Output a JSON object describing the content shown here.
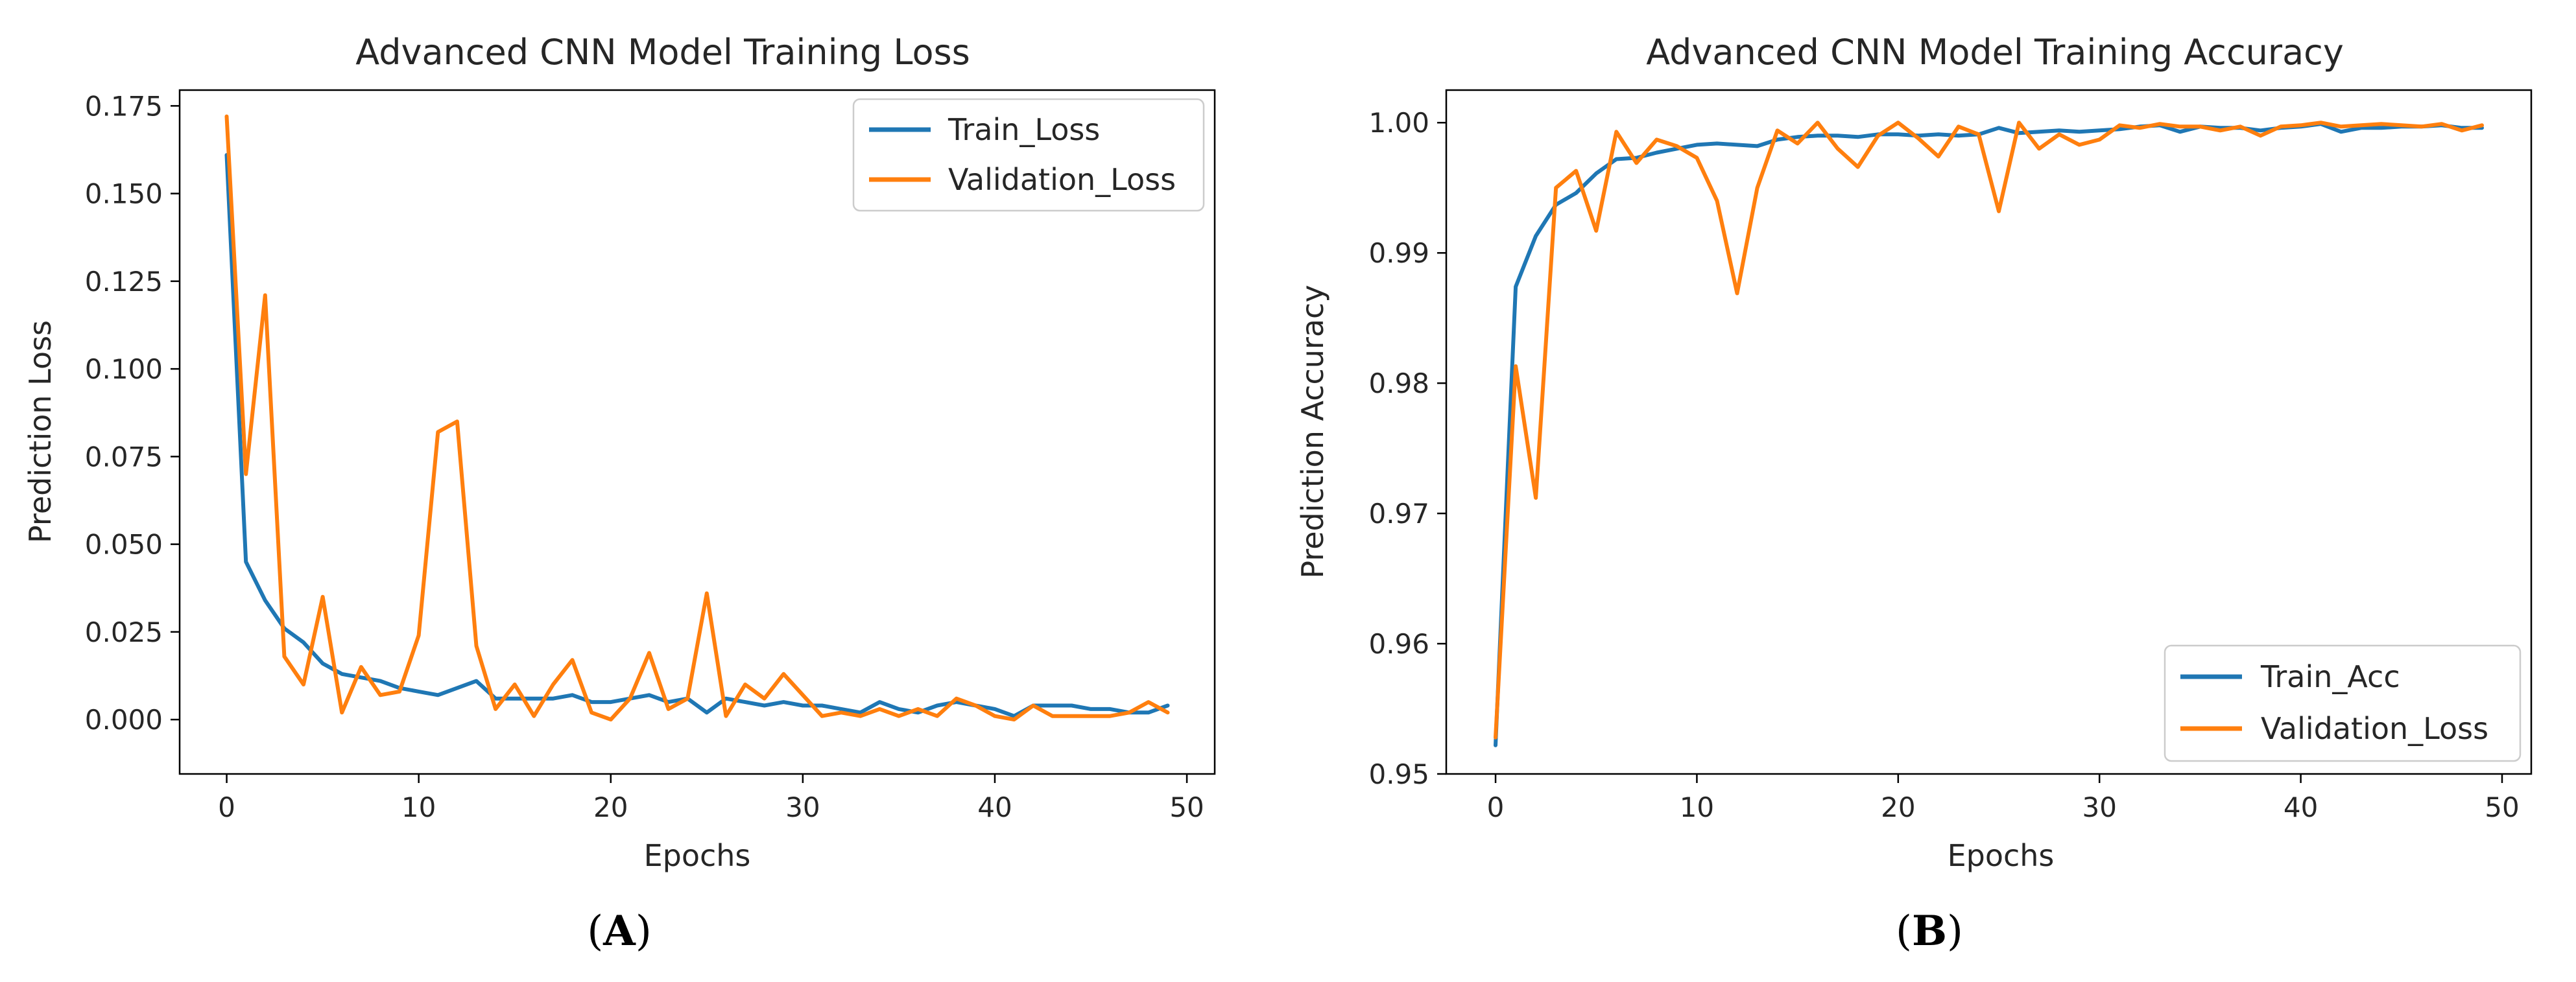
{
  "chart_data": [
    {
      "type": "line",
      "panel_label": "A",
      "title": "Advanced CNN Model Training Loss",
      "xlabel": "Epochs",
      "ylabel": "Prediction Loss",
      "xlim": [
        -2.45,
        51.45
      ],
      "ylim": [
        -0.0155,
        0.1795
      ],
      "xticks": [
        0,
        10,
        20,
        30,
        40,
        50
      ],
      "xtick_labels": [
        "0",
        "10",
        "20",
        "30",
        "40",
        "50"
      ],
      "yticks": [
        0.0,
        0.025,
        0.05,
        0.075,
        0.1,
        0.125,
        0.15,
        0.175
      ],
      "ytick_labels": [
        "0.000",
        "0.025",
        "0.050",
        "0.075",
        "0.100",
        "0.125",
        "0.150",
        "0.175"
      ],
      "legend_position": "top-right",
      "grid": false,
      "x": [
        0,
        1,
        2,
        3,
        4,
        5,
        6,
        7,
        8,
        9,
        10,
        11,
        12,
        13,
        14,
        15,
        16,
        17,
        18,
        19,
        20,
        21,
        22,
        23,
        24,
        25,
        26,
        27,
        28,
        29,
        30,
        31,
        32,
        33,
        34,
        35,
        36,
        37,
        38,
        39,
        40,
        41,
        42,
        43,
        44,
        45,
        46,
        47,
        48,
        49
      ],
      "series": [
        {
          "name": "Train_Loss",
          "color": "#1f77b4",
          "values": [
            0.161,
            0.045,
            0.034,
            0.026,
            0.022,
            0.016,
            0.013,
            0.012,
            0.011,
            0.009,
            0.008,
            0.007,
            0.009,
            0.011,
            0.006,
            0.006,
            0.006,
            0.006,
            0.007,
            0.005,
            0.005,
            0.006,
            0.007,
            0.005,
            0.006,
            0.002,
            0.006,
            0.005,
            0.004,
            0.005,
            0.004,
            0.004,
            0.003,
            0.002,
            0.005,
            0.003,
            0.002,
            0.004,
            0.005,
            0.004,
            0.003,
            0.001,
            0.004,
            0.004,
            0.004,
            0.003,
            0.003,
            0.002,
            0.002,
            0.004
          ]
        },
        {
          "name": "Validation_Loss",
          "color": "#ff7f0e",
          "values": [
            0.172,
            0.07,
            0.121,
            0.018,
            0.01,
            0.035,
            0.002,
            0.015,
            0.007,
            0.008,
            0.024,
            0.082,
            0.085,
            0.021,
            0.003,
            0.01,
            0.001,
            0.01,
            0.017,
            0.002,
            0.0,
            0.006,
            0.019,
            0.003,
            0.006,
            0.036,
            0.001,
            0.01,
            0.006,
            0.013,
            0.007,
            0.001,
            0.002,
            0.001,
            0.003,
            0.001,
            0.003,
            0.001,
            0.006,
            0.004,
            0.001,
            0.0,
            0.004,
            0.001,
            0.001,
            0.001,
            0.001,
            0.002,
            0.005,
            0.002
          ]
        }
      ]
    },
    {
      "type": "line",
      "panel_label": "B",
      "title": "Advanced CNN Model Training Accuracy",
      "xlabel": "Epochs",
      "ylabel": "Prediction Accuracy",
      "xlim": [
        -2.45,
        51.45
      ],
      "ylim": [
        0.95,
        1.0025
      ],
      "xticks": [
        0,
        10,
        20,
        30,
        40,
        50
      ],
      "xtick_labels": [
        "0",
        "10",
        "20",
        "30",
        "40",
        "50"
      ],
      "yticks": [
        0.95,
        0.96,
        0.97,
        0.98,
        0.99,
        1.0
      ],
      "ytick_labels": [
        "0.95",
        "0.96",
        "0.97",
        "0.98",
        "0.99",
        "1.00"
      ],
      "legend_position": "bottom-right",
      "grid": false,
      "x": [
        0,
        1,
        2,
        3,
        4,
        5,
        6,
        7,
        8,
        9,
        10,
        11,
        12,
        13,
        14,
        15,
        16,
        17,
        18,
        19,
        20,
        21,
        22,
        23,
        24,
        25,
        26,
        27,
        28,
        29,
        30,
        31,
        32,
        33,
        34,
        35,
        36,
        37,
        38,
        39,
        40,
        41,
        42,
        43,
        44,
        45,
        46,
        47,
        48,
        49
      ],
      "series": [
        {
          "name": "Train_Acc",
          "color": "#1f77b4",
          "values": [
            0.9522,
            0.9874,
            0.9913,
            0.9937,
            0.9946,
            0.9961,
            0.9972,
            0.9973,
            0.9977,
            0.998,
            0.9983,
            0.9984,
            0.9983,
            0.9982,
            0.9987,
            0.9989,
            0.999,
            0.999,
            0.9989,
            0.9991,
            0.9991,
            0.999,
            0.9991,
            0.999,
            0.9991,
            0.9996,
            0.9992,
            0.9993,
            0.9994,
            0.9993,
            0.9994,
            0.9995,
            0.9997,
            0.9998,
            0.9993,
            0.9997,
            0.9996,
            0.9996,
            0.9994,
            0.9996,
            0.9997,
            0.9999,
            0.9993,
            0.9996,
            0.9996,
            0.9997,
            0.9997,
            0.9998,
            0.9996,
            0.9996
          ]
        },
        {
          "name": "Validation_Loss",
          "color": "#ff7f0e",
          "values": [
            0.9528,
            0.9813,
            0.9712,
            0.995,
            0.9963,
            0.9917,
            0.9993,
            0.9969,
            0.9987,
            0.9982,
            0.9973,
            0.994,
            0.9869,
            0.995,
            0.9994,
            0.9984,
            1.0,
            0.998,
            0.9966,
            0.999,
            1.0,
            0.9988,
            0.9974,
            0.9997,
            0.9991,
            0.9932,
            1.0,
            0.998,
            0.9991,
            0.9983,
            0.9987,
            0.9998,
            0.9996,
            0.9999,
            0.9997,
            0.9997,
            0.9994,
            0.9997,
            0.999,
            0.9997,
            0.9998,
            1.0,
            0.9997,
            0.9998,
            0.9999,
            0.9998,
            0.9997,
            0.9999,
            0.9994,
            0.9998
          ]
        }
      ]
    }
  ]
}
